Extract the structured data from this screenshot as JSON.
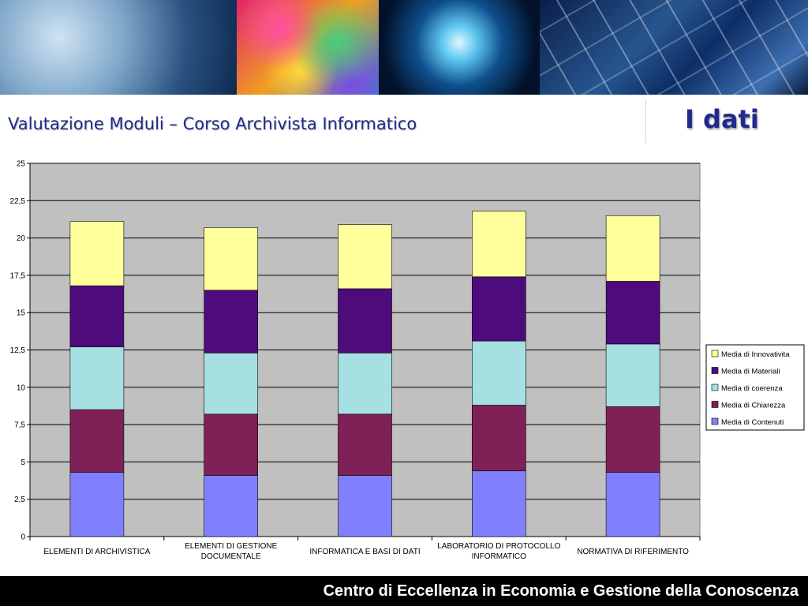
{
  "header": {
    "subtitle": "Valutazione Moduli – Corso Archivista Informatico",
    "title": "I dati"
  },
  "footer": {
    "text": "Centro di Eccellenza in Economia e Gestione della Conoscenza"
  },
  "chart_data": {
    "type": "bar",
    "stacked": true,
    "title": "",
    "xlabel": "",
    "ylabel": "",
    "ylim": [
      0,
      25
    ],
    "yticks": [
      0,
      2.5,
      5,
      7.5,
      10,
      12.5,
      15,
      17.5,
      20,
      22.5,
      25
    ],
    "ytick_labels": [
      "0",
      "2,5",
      "5",
      "7,5",
      "10",
      "12,5",
      "15",
      "17,5",
      "20",
      "22,5",
      "25"
    ],
    "grid": true,
    "legend_position": "right",
    "categories": [
      [
        "ELEMENTI DI ARCHIVISTICA"
      ],
      [
        "ELEMENTI DI GESTIONE",
        "DOCUMENTALE"
      ],
      [
        "INFORMATICA E BASI DI DATI"
      ],
      [
        "LABORATORIO DI PROTOCOLLO",
        "INFORMATICO"
      ],
      [
        "NORMATIVA DI RIFERIMENTO"
      ]
    ],
    "series": [
      {
        "name": "Media di Contenuti",
        "color": "#8080ff",
        "values": [
          4.3,
          4.1,
          4.1,
          4.4,
          4.3
        ]
      },
      {
        "name": "Media di Chiarezza",
        "color": "#7f2056",
        "values": [
          4.2,
          4.1,
          4.1,
          4.4,
          4.4
        ]
      },
      {
        "name": "Media di coerenza",
        "color": "#a6e0e2",
        "values": [
          4.2,
          4.1,
          4.1,
          4.3,
          4.2
        ]
      },
      {
        "name": "Media di Materiali",
        "color": "#4e0b7b",
        "values": [
          4.1,
          4.2,
          4.3,
          4.3,
          4.2
        ]
      },
      {
        "name": "Media di Innovativita",
        "color": "#ffff9c",
        "values": [
          4.3,
          4.2,
          4.3,
          4.4,
          4.4
        ]
      }
    ]
  }
}
